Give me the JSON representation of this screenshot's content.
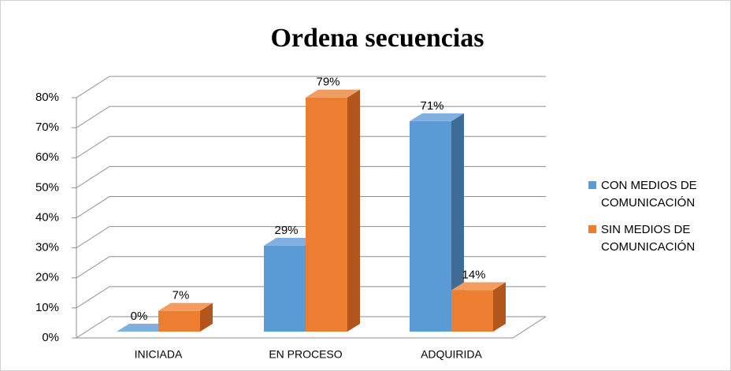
{
  "chart_data": {
    "type": "bar3d",
    "title": "Ordena secuencias",
    "categories": [
      "INICIADA",
      "EN PROCESO",
      "ADQUIRIDA"
    ],
    "series": [
      {
        "name": "CON MEDIOS DE COMUNICACIÓN",
        "color": "#5b9bd5",
        "values": [
          0,
          29,
          71
        ],
        "value_labels": [
          "0%",
          "29%",
          "71%"
        ]
      },
      {
        "name": "SIN MEDIOS DE COMUNICACIÓN",
        "color": "#ed7d31",
        "values": [
          7,
          79,
          14
        ],
        "value_labels": [
          "7%",
          "79%",
          "14%"
        ]
      }
    ],
    "ylim": [
      0,
      80
    ],
    "yticks": [
      {
        "value": 0,
        "label": "0%"
      },
      {
        "value": 10,
        "label": "10%"
      },
      {
        "value": 20,
        "label": "20%"
      },
      {
        "value": 30,
        "label": "30%"
      },
      {
        "value": 40,
        "label": "40%"
      },
      {
        "value": 50,
        "label": "50%"
      },
      {
        "value": 60,
        "label": "60%"
      },
      {
        "value": 70,
        "label": "70%"
      },
      {
        "value": 80,
        "label": "80%"
      }
    ],
    "grid": true,
    "legend": "right"
  }
}
